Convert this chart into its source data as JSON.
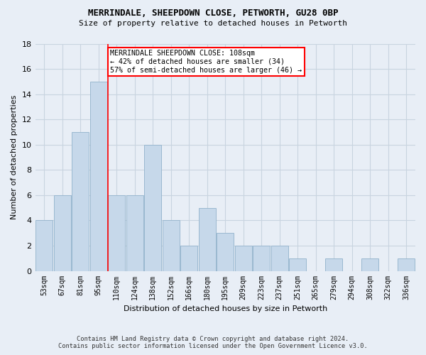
{
  "title": "MERRINDALE, SHEEPDOWN CLOSE, PETWORTH, GU28 0BP",
  "subtitle": "Size of property relative to detached houses in Petworth",
  "xlabel": "Distribution of detached houses by size in Petworth",
  "ylabel": "Number of detached properties",
  "bin_labels": [
    "53sqm",
    "67sqm",
    "81sqm",
    "95sqm",
    "110sqm",
    "124sqm",
    "138sqm",
    "152sqm",
    "166sqm",
    "180sqm",
    "195sqm",
    "209sqm",
    "223sqm",
    "237sqm",
    "251sqm",
    "265sqm",
    "279sqm",
    "294sqm",
    "308sqm",
    "322sqm",
    "336sqm"
  ],
  "counts": [
    4,
    6,
    11,
    15,
    6,
    6,
    10,
    4,
    2,
    5,
    3,
    2,
    2,
    2,
    1,
    0,
    1,
    0,
    1,
    0,
    1
  ],
  "bar_color": "#c6d8ea",
  "bar_edge_color": "#9ab8d0",
  "grid_color": "#c8d4e0",
  "vline_x_idx": 4,
  "annotation_text": "MERRINDALE SHEEPDOWN CLOSE: 108sqm\n← 42% of detached houses are smaller (34)\n57% of semi-detached houses are larger (46) →",
  "annotation_box_color": "white",
  "annotation_box_edgecolor": "red",
  "vline_color": "red",
  "ylim": [
    0,
    18
  ],
  "yticks": [
    0,
    2,
    4,
    6,
    8,
    10,
    12,
    14,
    16,
    18
  ],
  "footer": "Contains HM Land Registry data © Crown copyright and database right 2024.\nContains public sector information licensed under the Open Government Licence v3.0.",
  "background_color": "#e8eef6"
}
